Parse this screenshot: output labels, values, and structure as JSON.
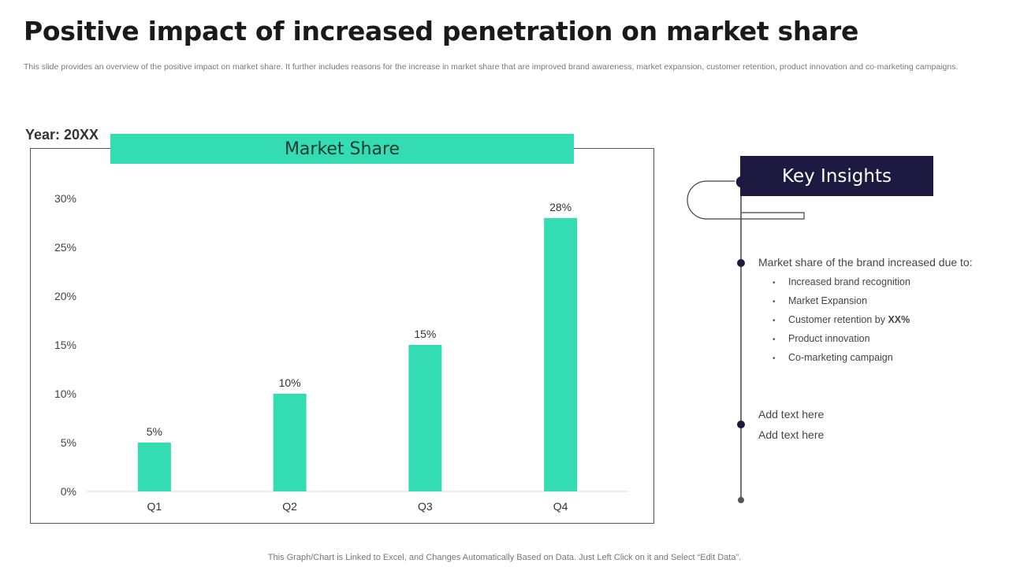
{
  "header": {
    "title": "Positive impact of increased penetration on market share",
    "subtitle": "This slide provides an overview of the positive impact on market share. It further includes reasons for the increase in market share that are improved brand awareness, market expansion, customer retention, product innovation and co-marketing campaigns."
  },
  "year_label": "Year: 20XX",
  "chart_data": {
    "type": "bar",
    "title": "Market Share",
    "categories": [
      "Q1",
      "Q2",
      "Q3",
      "Q4"
    ],
    "values": [
      5,
      10,
      15,
      28
    ],
    "data_labels": [
      "5%",
      "10%",
      "15%",
      "28%"
    ],
    "yticks": [
      "0%",
      "5%",
      "10%",
      "15%",
      "20%",
      "25%",
      "30%"
    ],
    "ylim": [
      0,
      30
    ],
    "xlabel": "",
    "ylabel": "",
    "grid": false,
    "bar_color": "#34dcb4"
  },
  "insights": {
    "heading": "Key Insights",
    "main_point": "Market share of the brand increased due to:",
    "bullets": [
      {
        "text": "Increased brand recognition"
      },
      {
        "text": "Market Expansion"
      },
      {
        "text": "Customer retention by ",
        "bold": "XX%"
      },
      {
        "text": "Product innovation"
      },
      {
        "text": "Co-marketing campaign"
      }
    ],
    "add_text_1": "Add text here",
    "add_text_2": "Add text here"
  },
  "footer": "This Graph/Chart is Linked to Excel, and Changes Automatically Based on Data. Just Left Click on it and Select “Edit Data”.",
  "colors": {
    "accent": "#34dcb4",
    "navy": "#1c1a40"
  }
}
